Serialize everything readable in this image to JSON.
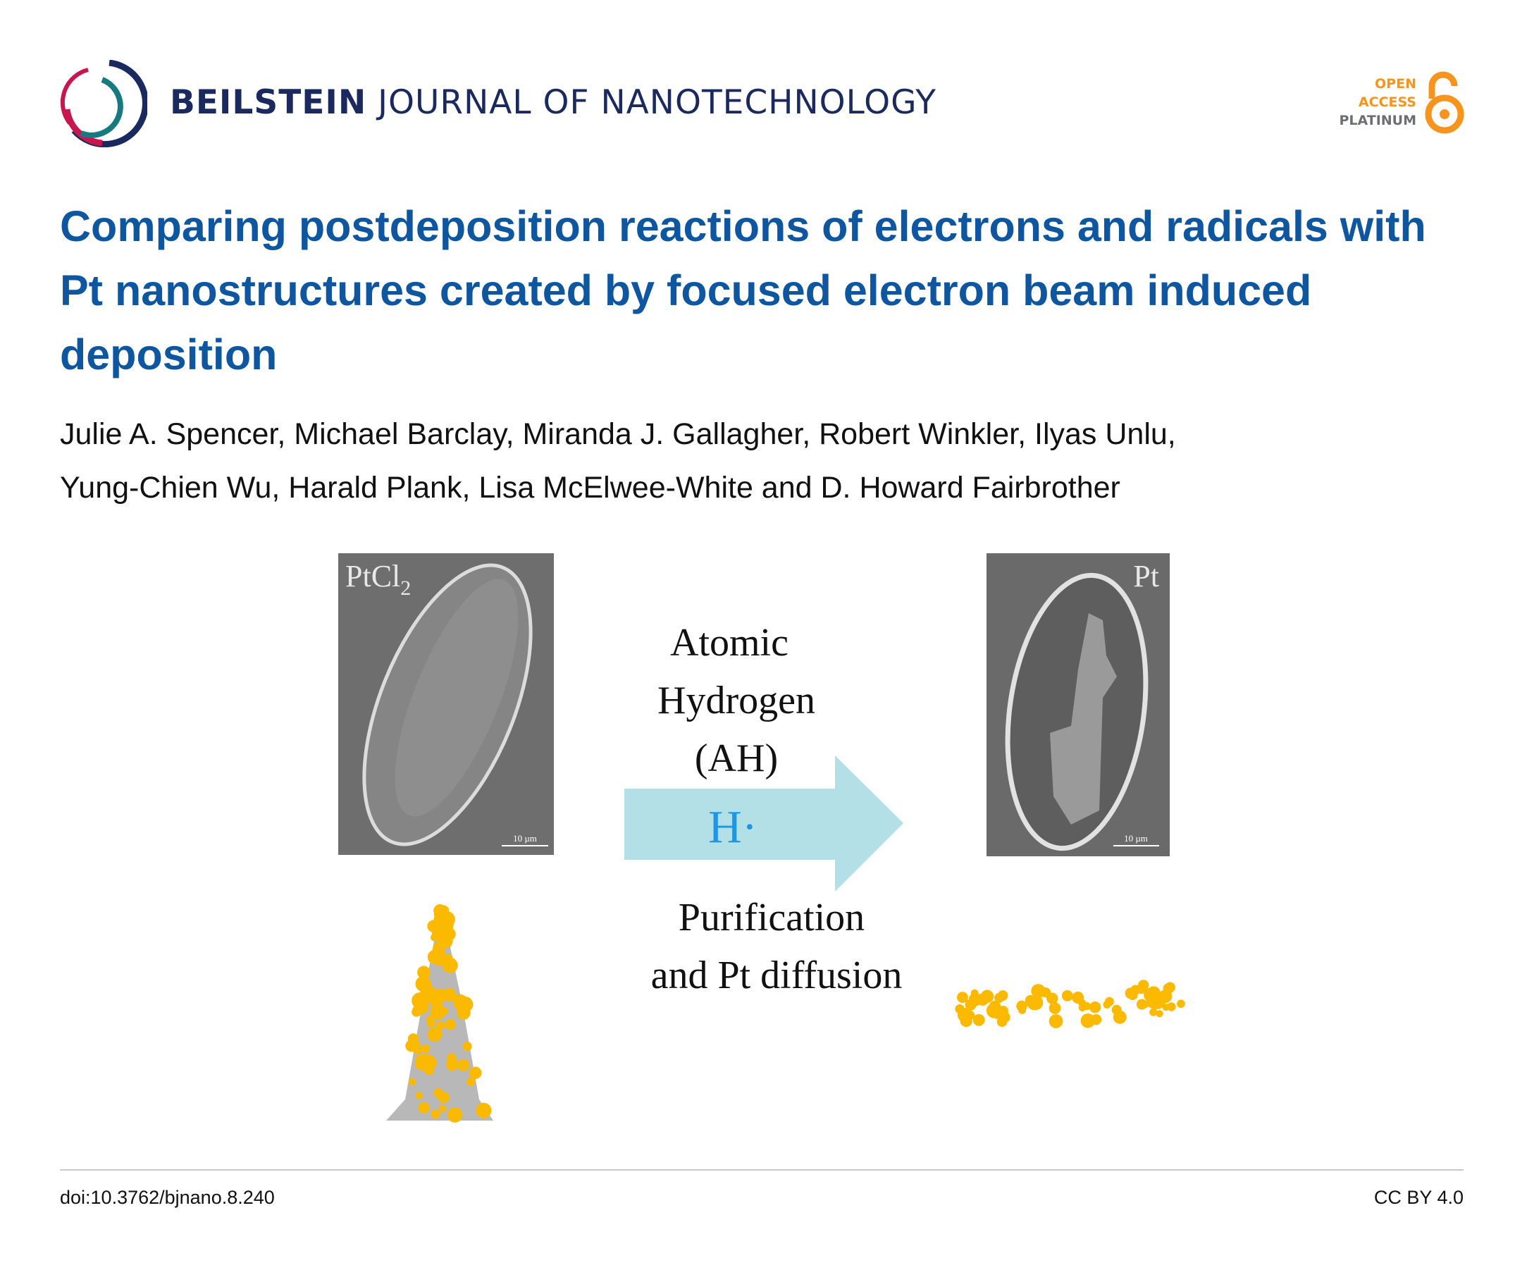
{
  "header": {
    "journal_bold": "BEILSTEIN",
    "journal_rest": " JOURNAL OF NANOTECHNOLOGY",
    "open_access": {
      "line1": "OPEN",
      "line2": "ACCESS",
      "line3": "PLATINUM",
      "accent": "#f7941d",
      "gray": "#6d6e71"
    }
  },
  "article": {
    "title": "Comparing postdeposition reactions of electrons and radicals with Pt nanostructures created by focused electron beam induced deposition",
    "authors_line1": "Julie A. Spencer, Michael Barclay, Miranda J. Gallagher, Robert Winkler, Ilyas Unlu,",
    "authors_line2": "Yung-Chien Wu, Harald Plank, Lisa McElwee-White and D. Howard Fairbrother"
  },
  "figure": {
    "left_label": "PtCl",
    "left_label_sub": "2",
    "right_label": "Pt",
    "scale_bar_left": "10 µm",
    "scale_bar_right": "10 µm",
    "arrow_text": [
      "Atomic",
      "Hydrogen",
      "(AH)"
    ],
    "arrow_symbol": "H·",
    "below_text": [
      "Purification",
      "and Pt diffusion"
    ],
    "colors": {
      "arrow": "#b3dfe6",
      "h_radical": "#1e96e6",
      "particles": "#fbb900",
      "matrix": "#b8b8b8"
    }
  },
  "footer": {
    "doi": "doi:10.3762/bjnano.8.240",
    "license": "CC BY 4.0"
  }
}
